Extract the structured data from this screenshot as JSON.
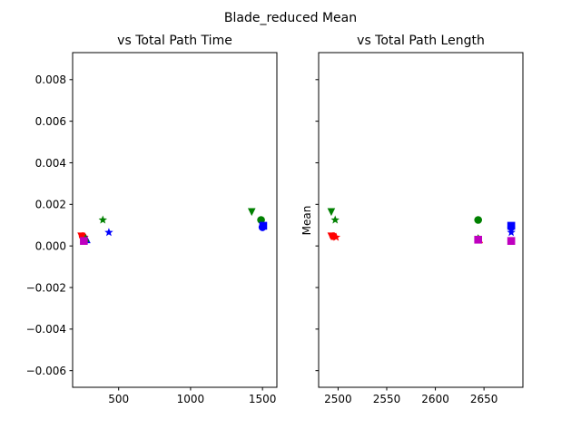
{
  "figure": {
    "suptitle": "Blade_reduced Mean"
  },
  "chart_data": [
    {
      "type": "scatter",
      "title": "vs Total Path Time",
      "xlabel": "",
      "ylabel": "",
      "xlim": [
        180,
        1600
      ],
      "ylim": [
        -0.0068,
        0.0093
      ],
      "xticks": [
        500,
        1000,
        1500
      ],
      "yticks": [
        -0.006,
        -0.004,
        -0.002,
        0.0,
        0.002,
        0.004,
        0.006,
        0.008
      ],
      "ytick_labels": [
        "−0.006",
        "−0.004",
        "−0.002",
        "0.000",
        "0.002",
        "0.004",
        "0.006",
        "0.008"
      ],
      "grid": false,
      "points": [
        {
          "x": 240,
          "y": 0.00048,
          "marker": "v",
          "color": "#ff0000"
        },
        {
          "x": 250,
          "y": 0.00047,
          "marker": "o",
          "color": "#ff0000"
        },
        {
          "x": 262,
          "y": 0.00042,
          "marker": "*",
          "color": "#ff0000"
        },
        {
          "x": 278,
          "y": 0.0003,
          "marker": "^",
          "color": "#0000ff"
        },
        {
          "x": 270,
          "y": 0.00036,
          "marker": "^",
          "color": "#008000"
        },
        {
          "x": 258,
          "y": 0.00024,
          "marker": "s",
          "color": "#bf00bf"
        },
        {
          "x": 390,
          "y": 0.00125,
          "marker": "*",
          "color": "#008000"
        },
        {
          "x": 432,
          "y": 0.00065,
          "marker": "*",
          "color": "#0000ff"
        },
        {
          "x": 1425,
          "y": 0.00165,
          "marker": "v",
          "color": "#008000"
        },
        {
          "x": 1490,
          "y": 0.00125,
          "marker": "o",
          "color": "#008000"
        },
        {
          "x": 1500,
          "y": 0.0009,
          "marker": "o",
          "color": "#0000ff"
        },
        {
          "x": 1505,
          "y": 0.00097,
          "marker": "s",
          "color": "#0000ff"
        }
      ]
    },
    {
      "type": "scatter",
      "title": "vs Total Path Length",
      "xlabel": "",
      "ylabel": "Mean",
      "xlim": [
        2480,
        2690
      ],
      "ylim": [
        -0.0068,
        0.0093
      ],
      "xticks": [
        2500,
        2550,
        2600,
        2650
      ],
      "yticks": [
        -0.006,
        -0.004,
        -0.002,
        0.0,
        0.002,
        0.004,
        0.006,
        0.008
      ],
      "grid": false,
      "points": [
        {
          "x": 2493,
          "y": 0.00165,
          "marker": "v",
          "color": "#008000"
        },
        {
          "x": 2497,
          "y": 0.00125,
          "marker": "*",
          "color": "#008000"
        },
        {
          "x": 2493,
          "y": 0.00048,
          "marker": "v",
          "color": "#ff0000"
        },
        {
          "x": 2495,
          "y": 0.00047,
          "marker": "o",
          "color": "#ff0000"
        },
        {
          "x": 2498,
          "y": 0.00042,
          "marker": "*",
          "color": "#ff0000"
        },
        {
          "x": 2644,
          "y": 0.00125,
          "marker": "o",
          "color": "#008000"
        },
        {
          "x": 2644,
          "y": 0.00036,
          "marker": "^",
          "color": "#008000"
        },
        {
          "x": 2645,
          "y": 0.0003,
          "marker": "^",
          "color": "#ff0000"
        },
        {
          "x": 2644,
          "y": 0.0003,
          "marker": "s",
          "color": "#bf00bf"
        },
        {
          "x": 2678,
          "y": 0.00097,
          "marker": "s",
          "color": "#0000ff"
        },
        {
          "x": 2678,
          "y": 0.0009,
          "marker": "o",
          "color": "#0000ff"
        },
        {
          "x": 2678,
          "y": 0.00065,
          "marker": "*",
          "color": "#0000ff"
        },
        {
          "x": 2678,
          "y": 0.00024,
          "marker": "s",
          "color": "#bf00bf"
        }
      ]
    }
  ]
}
